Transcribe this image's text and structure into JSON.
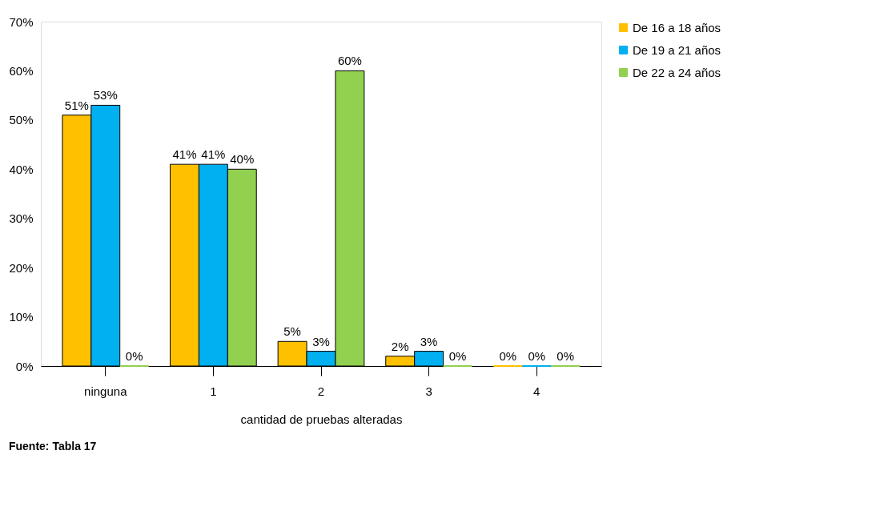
{
  "chart_data": {
    "type": "bar",
    "xlabel": "cantidad de pruebas alteradas",
    "categories": [
      "ninguna",
      "1",
      "2",
      "3",
      "4"
    ],
    "series": [
      {
        "name": "De 16 a 18 años",
        "color": "#ffc000",
        "values": [
          51,
          41,
          5,
          2,
          0
        ],
        "value_labels": [
          "51%",
          "41%",
          "5%",
          "2%",
          "0%"
        ]
      },
      {
        "name": "De 19 a 21 años",
        "color": "#00b0f0",
        "values": [
          53,
          41,
          3,
          3,
          0
        ],
        "value_labels": [
          "53%",
          "41%",
          "3%",
          "3%",
          "0%"
        ]
      },
      {
        "name": "De 22 a 24 años",
        "color": "#92d050",
        "values": [
          0,
          40,
          60,
          0,
          0
        ],
        "value_labels": [
          "0%",
          "40%",
          "60%",
          "0%",
          "0%"
        ]
      }
    ],
    "ylim": [
      0,
      70
    ],
    "yticks": [
      {
        "value": 0,
        "label": "0%"
      },
      {
        "value": 10,
        "label": "10%"
      },
      {
        "value": 20,
        "label": "20%"
      },
      {
        "value": 30,
        "label": "30%"
      },
      {
        "value": 40,
        "label": "40%"
      },
      {
        "value": 50,
        "label": "50%"
      },
      {
        "value": 60,
        "label": "60%"
      },
      {
        "value": 70,
        "label": "70%"
      }
    ],
    "grid": false,
    "legend": "right",
    "annotations": [
      "Fuente: Tabla 17"
    ]
  }
}
